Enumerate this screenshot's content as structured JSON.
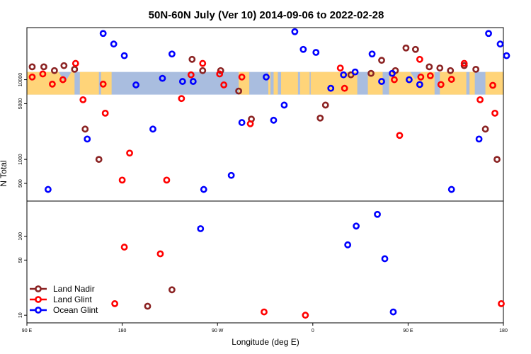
{
  "chart_data": {
    "type": "scatter",
    "title": "50N-60N July (Ver 10)   2014-09-06 to 2022-02-28",
    "xlabel": "Longitude (deg E)",
    "ylabel": "N Total",
    "x_ticks": [
      {
        "value": 90,
        "label": "90 E"
      },
      {
        "value": 180,
        "label": "180"
      },
      {
        "value": 270,
        "label": "90 W"
      },
      {
        "value": 360,
        "label": "0"
      },
      {
        "value": 450,
        "label": "90 E"
      },
      {
        "value": 540,
        "label": "180"
      }
    ],
    "xlim": [
      90,
      540
    ],
    "top_panel": {
      "yscale": "log",
      "ylim": [
        300,
        45000
      ],
      "y_ticks": [
        500,
        1000,
        5000,
        10000
      ],
      "map_band_range": [
        6500,
        12500
      ],
      "series": [
        {
          "name": "Land Nadir",
          "color": "#8b2323",
          "points": [
            [
              95,
              14500
            ],
            [
              106,
              14500
            ],
            [
              116,
              13000
            ],
            [
              125,
              15000
            ],
            [
              135,
              13500
            ],
            [
              145,
              2400
            ],
            [
              158,
              1000
            ],
            [
              246,
              18000
            ],
            [
              256,
              13000
            ],
            [
              273,
              13000
            ],
            [
              290,
              7200
            ],
            [
              302,
              3200
            ],
            [
              367,
              3300
            ],
            [
              372,
              4800
            ],
            [
              396,
              11500
            ],
            [
              415,
              12000
            ],
            [
              425,
              17500
            ],
            [
              438,
              13000
            ],
            [
              448,
              25000
            ],
            [
              457,
              24000
            ],
            [
              470,
              14500
            ],
            [
              480,
              14000
            ],
            [
              490,
              13000
            ],
            [
              503,
              15000
            ],
            [
              514,
              13500
            ],
            [
              523,
              2400
            ],
            [
              534,
              1000
            ]
          ]
        },
        {
          "name": "Land Glint",
          "color": "#ff0000",
          "points": [
            [
              95,
              10800
            ],
            [
              105,
              11800
            ],
            [
              114,
              8800
            ],
            [
              124,
              10000
            ],
            [
              136,
              16000
            ],
            [
              143,
              5600
            ],
            [
              162,
              8800
            ],
            [
              164,
              3800
            ],
            [
              180,
              550
            ],
            [
              187,
              1200
            ],
            [
              222,
              550
            ],
            [
              236,
              5800
            ],
            [
              245,
              11500
            ],
            [
              256,
              16000
            ],
            [
              272,
              11800
            ],
            [
              276,
              8600
            ],
            [
              293,
              10800
            ],
            [
              301,
              2800
            ],
            [
              386,
              14000
            ],
            [
              390,
              7800
            ],
            [
              437,
              10000
            ],
            [
              442,
              2000
            ],
            [
              461,
              18000
            ],
            [
              462,
              10800
            ],
            [
              471,
              11200
            ],
            [
              481,
              8700
            ],
            [
              491,
              10100
            ],
            [
              503,
              16000
            ],
            [
              518,
              5600
            ],
            [
              530,
              8500
            ],
            [
              532,
              3800
            ]
          ]
        },
        {
          "name": "Ocean Glint",
          "color": "#0000ff",
          "points": [
            [
              110,
              420
            ],
            [
              147,
              1800
            ],
            [
              162,
              38000
            ],
            [
              172,
              28000
            ],
            [
              182,
              20000
            ],
            [
              193,
              8600
            ],
            [
              209,
              2400
            ],
            [
              218,
              10400
            ],
            [
              227,
              21000
            ],
            [
              237,
              9500
            ],
            [
              247,
              9500
            ],
            [
              257,
              420
            ],
            [
              283,
              630
            ],
            [
              293,
              2900
            ],
            [
              316,
              10800
            ],
            [
              323,
              3100
            ],
            [
              333,
              4800
            ],
            [
              343,
              40000
            ],
            [
              351,
              24000
            ],
            [
              363,
              22000
            ],
            [
              377,
              7800
            ],
            [
              389,
              11500
            ],
            [
              400,
              12500
            ],
            [
              416,
              21000
            ],
            [
              425,
              9500
            ],
            [
              435,
              12000
            ],
            [
              451,
              10000
            ],
            [
              461,
              8700
            ],
            [
              491,
              420
            ],
            [
              517,
              1800
            ],
            [
              526,
              38000
            ],
            [
              537,
              28000
            ],
            [
              543,
              20000
            ]
          ]
        }
      ]
    },
    "bottom_panel": {
      "yscale": "log",
      "ylim": [
        8,
        280
      ],
      "y_ticks": [
        10,
        50,
        100
      ],
      "series": [
        {
          "name": "Land Nadir",
          "color": "#8b2323",
          "points": [
            [
              204,
              13
            ],
            [
              227,
              21
            ]
          ]
        },
        {
          "name": "Land Glint",
          "color": "#ff0000",
          "points": [
            [
              173,
              14
            ],
            [
              182,
              73
            ],
            [
              216,
              60
            ],
            [
              314,
              11
            ],
            [
              353,
              10
            ],
            [
              538,
              14
            ]
          ]
        },
        {
          "name": "Ocean Glint",
          "color": "#0000ff",
          "points": [
            [
              254,
              125
            ],
            [
              393,
              78
            ],
            [
              401,
              135
            ],
            [
              421,
              190
            ],
            [
              428,
              52
            ],
            [
              436,
              11
            ]
          ]
        }
      ]
    },
    "legend": {
      "placement": "bottom-left",
      "items": [
        {
          "label": "Land Nadir",
          "color": "#8b2323"
        },
        {
          "label": "Land Glint",
          "color": "#ff0000"
        },
        {
          "label": "Ocean Glint",
          "color": "#0000ff"
        }
      ]
    },
    "map_colors": {
      "land": "#ffd479",
      "ocean": "#a9bddf"
    }
  }
}
